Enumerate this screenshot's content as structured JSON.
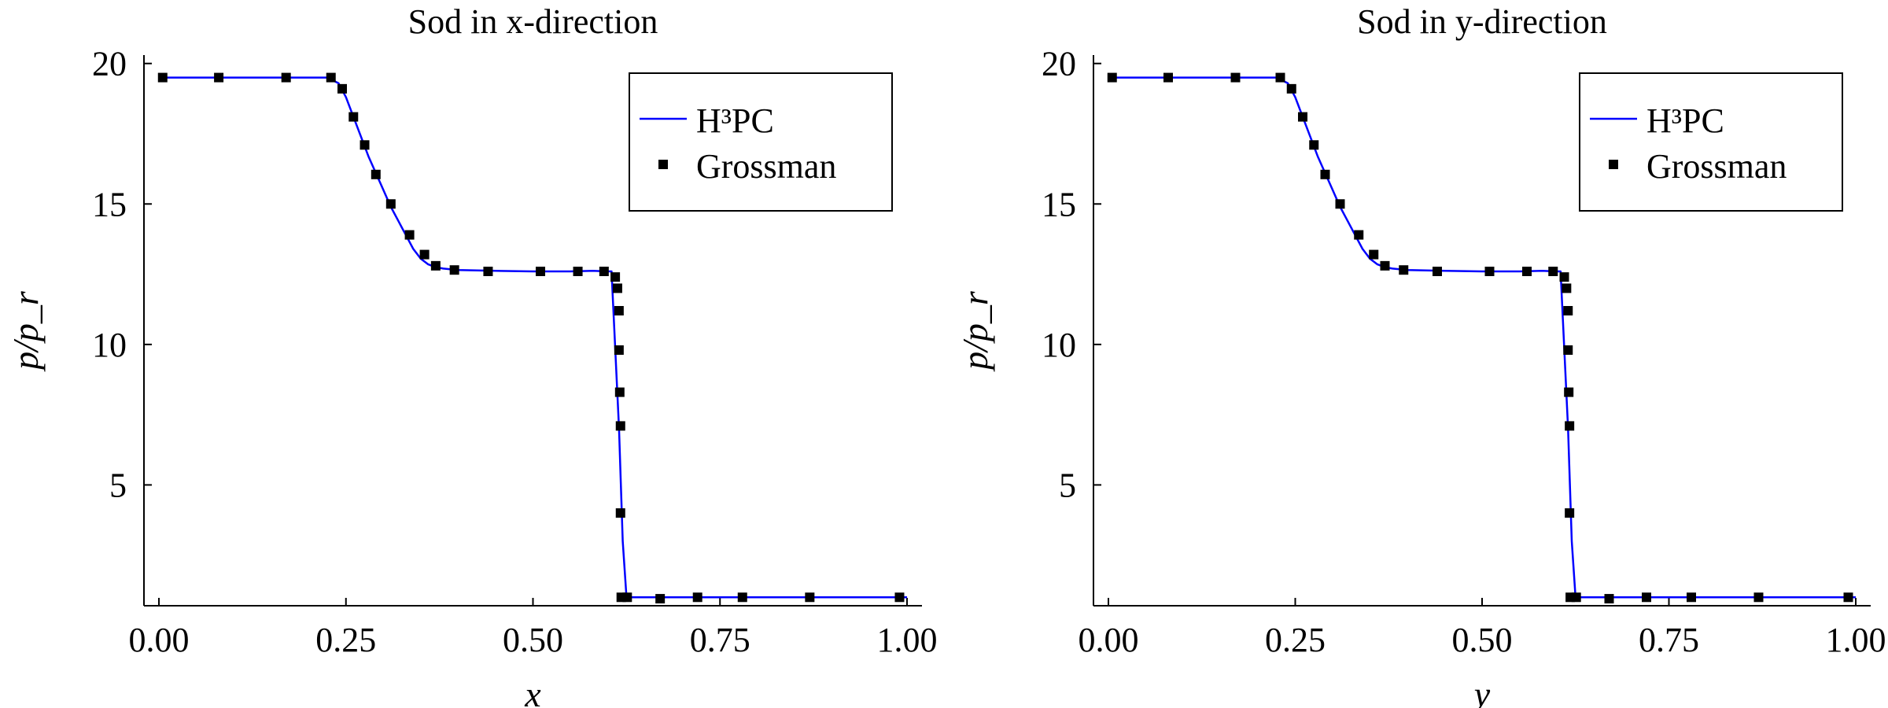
{
  "chart_data": [
    {
      "type": "line",
      "title": "Sod in x-direction",
      "xlabel": "x",
      "ylabel": "p/p_r",
      "xlim": [
        -0.02,
        1.02
      ],
      "ylim": [
        0.7,
        20.3
      ],
      "xticks": [
        0.0,
        0.25,
        0.5,
        0.75,
        1.0
      ],
      "xtick_labels": [
        "0.00",
        "0.25",
        "0.50",
        "0.75",
        "1.00"
      ],
      "yticks": [
        5,
        10,
        15,
        20
      ],
      "ytick_labels": [
        "5",
        "10",
        "15",
        "20"
      ],
      "grid": false,
      "legend": {
        "position": "top-right",
        "entries": [
          "H³PC",
          "Grossman"
        ]
      },
      "series": [
        {
          "name": "H³PC",
          "style": "line",
          "color": "#0000ff",
          "x": [
            0.0,
            0.225,
            0.24,
            0.25,
            0.26,
            0.27,
            0.28,
            0.29,
            0.3,
            0.31,
            0.32,
            0.33,
            0.34,
            0.35,
            0.36,
            0.37,
            0.38,
            0.4,
            0.45,
            0.5,
            0.55,
            0.58,
            0.6,
            0.605,
            0.615,
            0.62,
            0.625,
            0.65,
            0.7,
            0.8,
            0.9,
            1.0
          ],
          "y": [
            19.5,
            19.5,
            19.3,
            18.8,
            18.1,
            17.4,
            16.7,
            16.1,
            15.5,
            14.9,
            14.4,
            13.9,
            13.4,
            13.05,
            12.85,
            12.75,
            12.7,
            12.65,
            12.62,
            12.6,
            12.6,
            12.62,
            12.6,
            12.6,
            7.0,
            3.0,
            1.0,
            1.0,
            1.0,
            1.0,
            1.0,
            1.0
          ]
        },
        {
          "name": "Grossman",
          "style": "markers",
          "color": "#000000",
          "x": [
            0.005,
            0.08,
            0.17,
            0.23,
            0.245,
            0.26,
            0.275,
            0.29,
            0.31,
            0.335,
            0.355,
            0.37,
            0.395,
            0.44,
            0.51,
            0.56,
            0.595,
            0.61,
            0.613,
            0.615,
            0.615,
            0.616,
            0.617,
            0.617,
            0.618,
            0.626,
            0.67,
            0.72,
            0.78,
            0.87,
            0.99
          ],
          "y": [
            19.5,
            19.5,
            19.5,
            19.5,
            19.1,
            18.1,
            17.1,
            16.05,
            15.0,
            13.9,
            13.2,
            12.8,
            12.65,
            12.6,
            12.6,
            12.6,
            12.6,
            12.4,
            12.0,
            11.2,
            9.8,
            8.3,
            7.1,
            4.0,
            1.0,
            1.0,
            0.95,
            1.0,
            1.0,
            1.0,
            1.0
          ]
        }
      ]
    },
    {
      "type": "line",
      "title": "Sod in y-direction",
      "xlabel": "y",
      "ylabel": "p/p_r",
      "xlim": [
        -0.02,
        1.02
      ],
      "ylim": [
        0.7,
        20.3
      ],
      "xticks": [
        0.0,
        0.25,
        0.5,
        0.75,
        1.0
      ],
      "xtick_labels": [
        "0.00",
        "0.25",
        "0.50",
        "0.75",
        "1.00"
      ],
      "yticks": [
        5,
        10,
        15,
        20
      ],
      "ytick_labels": [
        "5",
        "10",
        "15",
        "20"
      ],
      "grid": false,
      "legend": {
        "position": "top-right",
        "entries": [
          "H³PC",
          "Grossman"
        ]
      },
      "series": [
        {
          "name": "H³PC",
          "style": "line",
          "color": "#0000ff",
          "x": [
            0.0,
            0.225,
            0.24,
            0.25,
            0.26,
            0.27,
            0.28,
            0.29,
            0.3,
            0.31,
            0.32,
            0.33,
            0.34,
            0.35,
            0.36,
            0.37,
            0.38,
            0.4,
            0.45,
            0.5,
            0.55,
            0.58,
            0.6,
            0.605,
            0.615,
            0.62,
            0.625,
            0.65,
            0.7,
            0.8,
            0.9,
            1.0
          ],
          "y": [
            19.5,
            19.5,
            19.3,
            18.8,
            18.1,
            17.4,
            16.7,
            16.1,
            15.5,
            14.9,
            14.4,
            13.9,
            13.4,
            13.05,
            12.85,
            12.75,
            12.7,
            12.65,
            12.62,
            12.6,
            12.6,
            12.62,
            12.6,
            12.6,
            7.0,
            3.0,
            1.0,
            1.0,
            1.0,
            1.0,
            1.0,
            1.0
          ]
        },
        {
          "name": "Grossman",
          "style": "markers",
          "color": "#000000",
          "x": [
            0.005,
            0.08,
            0.17,
            0.23,
            0.245,
            0.26,
            0.275,
            0.29,
            0.31,
            0.335,
            0.355,
            0.37,
            0.395,
            0.44,
            0.51,
            0.56,
            0.595,
            0.61,
            0.613,
            0.615,
            0.615,
            0.616,
            0.617,
            0.617,
            0.618,
            0.626,
            0.67,
            0.72,
            0.78,
            0.87,
            0.99
          ],
          "y": [
            19.5,
            19.5,
            19.5,
            19.5,
            19.1,
            18.1,
            17.1,
            16.05,
            15.0,
            13.9,
            13.2,
            12.8,
            12.65,
            12.6,
            12.6,
            12.6,
            12.6,
            12.4,
            12.0,
            11.2,
            9.8,
            8.3,
            7.1,
            4.0,
            1.0,
            1.0,
            0.95,
            1.0,
            1.0,
            1.0,
            1.0
          ]
        }
      ]
    }
  ]
}
